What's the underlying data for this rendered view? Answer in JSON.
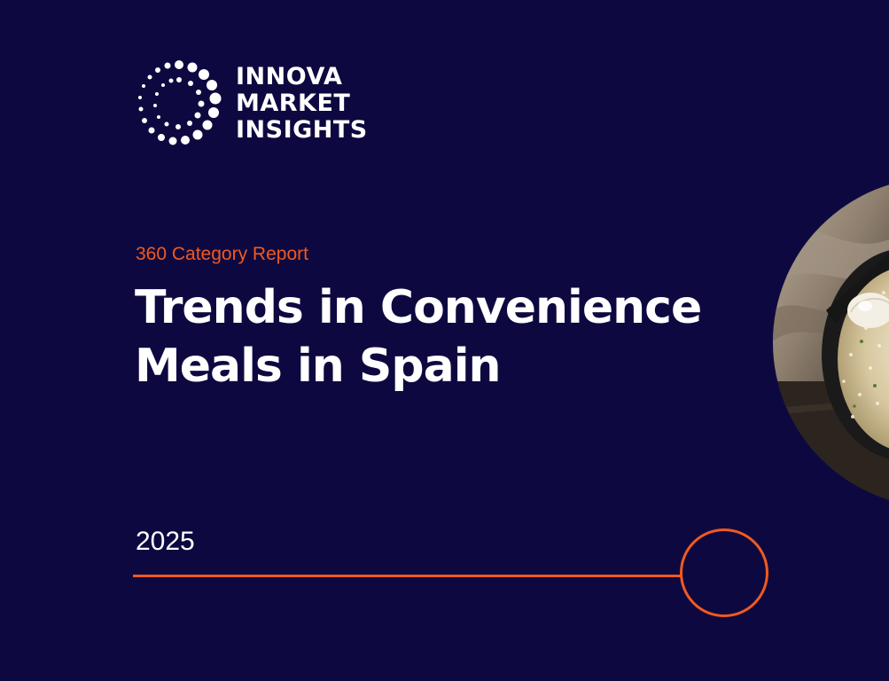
{
  "logo": {
    "lines": [
      "INNOVA",
      "MARKET",
      "INSIGHTS"
    ]
  },
  "cover": {
    "subtitle": "360 Category Report",
    "title_line1": "Trends in Convenience",
    "title_line2": "Meals in Spain",
    "year": "2025"
  },
  "colors": {
    "background": "#0d0940",
    "accent": "#f2591f",
    "text": "#ffffff"
  },
  "image": {
    "subject": "food-photo-rice-dish"
  }
}
